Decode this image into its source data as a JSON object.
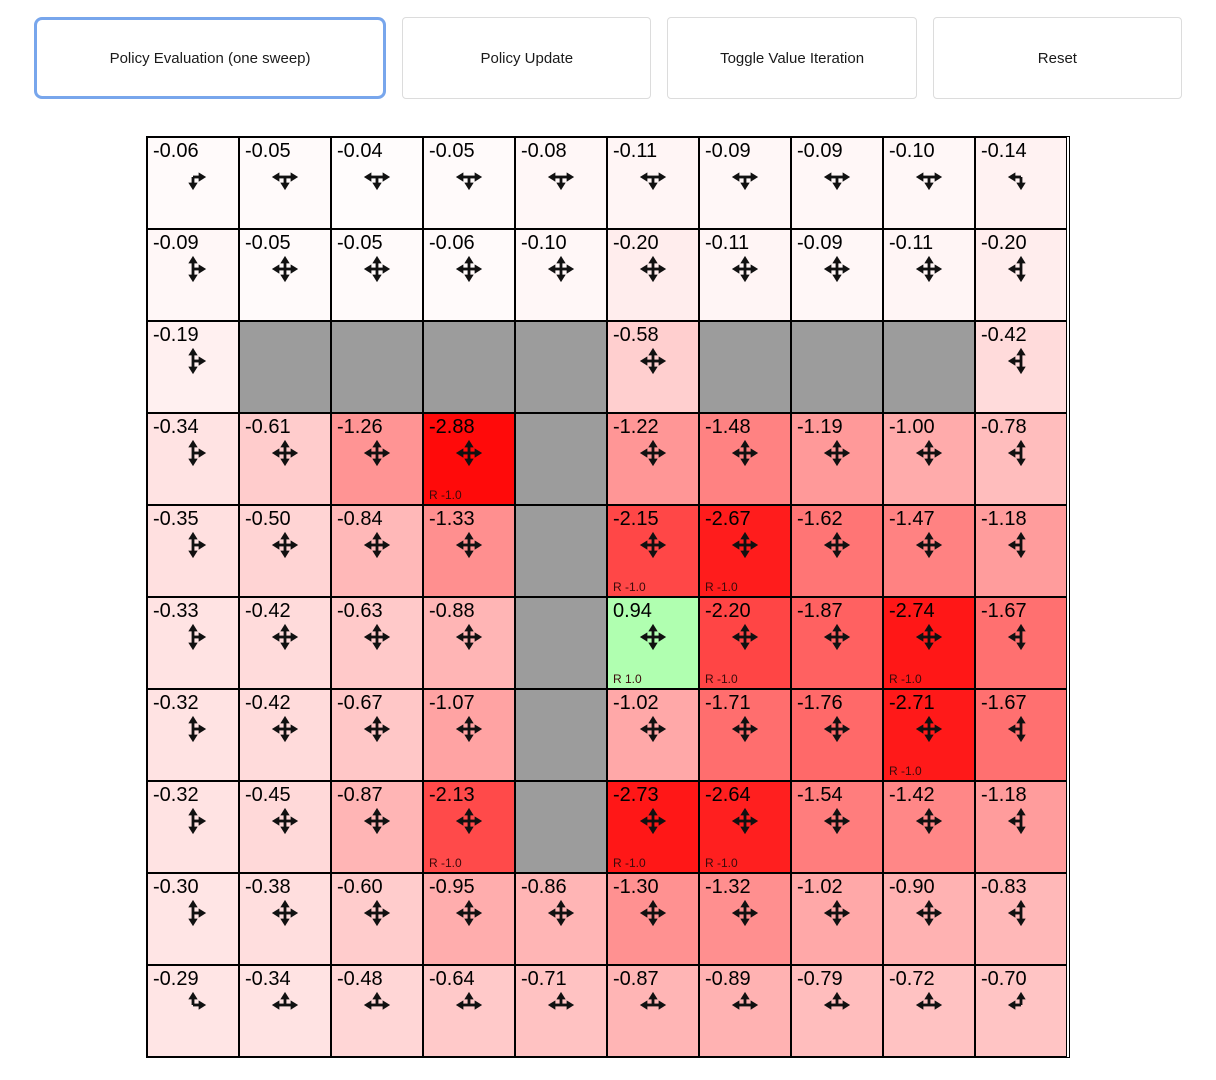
{
  "toolbar": {
    "buttons": [
      {
        "label": "Policy Evaluation (one sweep)",
        "active": true
      },
      {
        "label": "Policy Update",
        "active": false
      },
      {
        "label": "Toggle Value Iteration",
        "active": false
      },
      {
        "label": "Reset",
        "active": false
      }
    ]
  },
  "colors": {
    "wall": "#9c9c9c",
    "negative_base": "#ff0000",
    "positive_base": "#00ff00",
    "cell_border": "#000000",
    "active_button_border": "#78a6ec",
    "arrow": "#111111"
  },
  "grid": {
    "rows": 10,
    "cols": 10,
    "cells": [
      [
        {
          "v": "-0.06",
          "a": "ES"
        },
        {
          "v": "-0.05",
          "a": "WSE"
        },
        {
          "v": "-0.04",
          "a": "WSE"
        },
        {
          "v": "-0.05",
          "a": "WSE"
        },
        {
          "v": "-0.08",
          "a": "WSE"
        },
        {
          "v": "-0.11",
          "a": "WSE"
        },
        {
          "v": "-0.09",
          "a": "WSE"
        },
        {
          "v": "-0.09",
          "a": "WSE"
        },
        {
          "v": "-0.10",
          "a": "WSE"
        },
        {
          "v": "-0.14",
          "a": "SW"
        }
      ],
      [
        {
          "v": "-0.09",
          "a": "NES"
        },
        {
          "v": "-0.05",
          "a": "NESW"
        },
        {
          "v": "-0.05",
          "a": "NESW"
        },
        {
          "v": "-0.06",
          "a": "NESW"
        },
        {
          "v": "-0.10",
          "a": "NESW"
        },
        {
          "v": "-0.20",
          "a": "NESW"
        },
        {
          "v": "-0.11",
          "a": "NESW"
        },
        {
          "v": "-0.09",
          "a": "NESW"
        },
        {
          "v": "-0.11",
          "a": "NESW"
        },
        {
          "v": "-0.20",
          "a": "NSW"
        }
      ],
      [
        {
          "v": "-0.19",
          "a": "NES"
        },
        {
          "w": true
        },
        {
          "w": true
        },
        {
          "w": true
        },
        {
          "w": true
        },
        {
          "v": "-0.58",
          "a": "NESW"
        },
        {
          "w": true
        },
        {
          "w": true
        },
        {
          "w": true
        },
        {
          "v": "-0.42",
          "a": "NSW"
        }
      ],
      [
        {
          "v": "-0.34",
          "a": "NES"
        },
        {
          "v": "-0.61",
          "a": "NESW"
        },
        {
          "v": "-1.26",
          "a": "NESW"
        },
        {
          "v": "-2.88",
          "a": "NESW",
          "r": "R -1.0"
        },
        {
          "w": true
        },
        {
          "v": "-1.22",
          "a": "NESW"
        },
        {
          "v": "-1.48",
          "a": "NESW"
        },
        {
          "v": "-1.19",
          "a": "NESW"
        },
        {
          "v": "-1.00",
          "a": "NESW"
        },
        {
          "v": "-0.78",
          "a": "NSW"
        }
      ],
      [
        {
          "v": "-0.35",
          "a": "NES"
        },
        {
          "v": "-0.50",
          "a": "NESW"
        },
        {
          "v": "-0.84",
          "a": "NESW"
        },
        {
          "v": "-1.33",
          "a": "NESW"
        },
        {
          "w": true
        },
        {
          "v": "-2.15",
          "a": "NESW",
          "r": "R -1.0"
        },
        {
          "v": "-2.67",
          "a": "NESW",
          "r": "R -1.0"
        },
        {
          "v": "-1.62",
          "a": "NESW"
        },
        {
          "v": "-1.47",
          "a": "NESW"
        },
        {
          "v": "-1.18",
          "a": "NSW"
        }
      ],
      [
        {
          "v": "-0.33",
          "a": "NES"
        },
        {
          "v": "-0.42",
          "a": "NESW"
        },
        {
          "v": "-0.63",
          "a": "NESW"
        },
        {
          "v": "-0.88",
          "a": "NESW"
        },
        {
          "w": true
        },
        {
          "v": "0.94",
          "a": "NESW",
          "r": "R 1.0"
        },
        {
          "v": "-2.20",
          "a": "NESW",
          "r": "R -1.0"
        },
        {
          "v": "-1.87",
          "a": "NESW"
        },
        {
          "v": "-2.74",
          "a": "NESW",
          "r": "R -1.0"
        },
        {
          "v": "-1.67",
          "a": "NSW"
        }
      ],
      [
        {
          "v": "-0.32",
          "a": "NES"
        },
        {
          "v": "-0.42",
          "a": "NESW"
        },
        {
          "v": "-0.67",
          "a": "NESW"
        },
        {
          "v": "-1.07",
          "a": "NESW"
        },
        {
          "w": true
        },
        {
          "v": "-1.02",
          "a": "NESW"
        },
        {
          "v": "-1.71",
          "a": "NESW"
        },
        {
          "v": "-1.76",
          "a": "NESW"
        },
        {
          "v": "-2.71",
          "a": "NESW",
          "r": "R -1.0"
        },
        {
          "v": "-1.67",
          "a": "NSW"
        }
      ],
      [
        {
          "v": "-0.32",
          "a": "NES"
        },
        {
          "v": "-0.45",
          "a": "NESW"
        },
        {
          "v": "-0.87",
          "a": "NESW"
        },
        {
          "v": "-2.13",
          "a": "NESW",
          "r": "R -1.0"
        },
        {
          "w": true
        },
        {
          "v": "-2.73",
          "a": "NESW",
          "r": "R -1.0"
        },
        {
          "v": "-2.64",
          "a": "NESW",
          "r": "R -1.0"
        },
        {
          "v": "-1.54",
          "a": "NESW"
        },
        {
          "v": "-1.42",
          "a": "NESW"
        },
        {
          "v": "-1.18",
          "a": "NSW"
        }
      ],
      [
        {
          "v": "-0.30",
          "a": "NES"
        },
        {
          "v": "-0.38",
          "a": "NESW"
        },
        {
          "v": "-0.60",
          "a": "NESW"
        },
        {
          "v": "-0.95",
          "a": "NESW"
        },
        {
          "v": "-0.86",
          "a": "NESW"
        },
        {
          "v": "-1.30",
          "a": "NESW"
        },
        {
          "v": "-1.32",
          "a": "NESW"
        },
        {
          "v": "-1.02",
          "a": "NESW"
        },
        {
          "v": "-0.90",
          "a": "NESW"
        },
        {
          "v": "-0.83",
          "a": "NSW"
        }
      ],
      [
        {
          "v": "-0.29",
          "a": "NE"
        },
        {
          "v": "-0.34",
          "a": "NWE"
        },
        {
          "v": "-0.48",
          "a": "NWE"
        },
        {
          "v": "-0.64",
          "a": "NWE"
        },
        {
          "v": "-0.71",
          "a": "NWE"
        },
        {
          "v": "-0.87",
          "a": "NWE"
        },
        {
          "v": "-0.89",
          "a": "NWE"
        },
        {
          "v": "-0.79",
          "a": "NWE"
        },
        {
          "v": "-0.72",
          "a": "NWE"
        },
        {
          "v": "-0.70",
          "a": "NW"
        }
      ]
    ]
  }
}
